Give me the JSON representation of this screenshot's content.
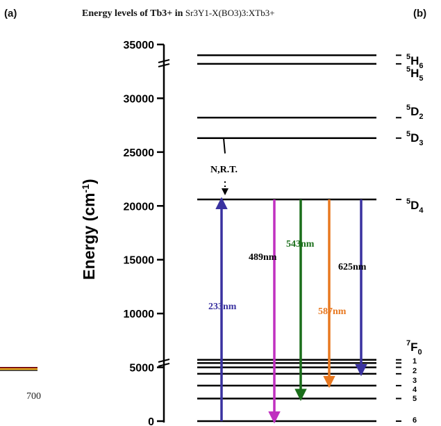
{
  "panel_a_label": "(a)",
  "panel_b_label": "(b)",
  "title_text": "Energy levels of Tb3+  in",
  "title_formula": "Sr3Y1-X(BO3)3:XTb3+",
  "left_panel_tick": "700",
  "y_axis": {
    "label": "Energy (cm-1)",
    "range": [
      0,
      35000
    ],
    "ticks": [
      "35000",
      "30000",
      "25000",
      "20000",
      "15000",
      "10000",
      "5000",
      "0"
    ]
  },
  "levels": [
    {
      "energy": 34000,
      "term": "5H6"
    },
    {
      "energy": 33200,
      "term": "5H5"
    },
    {
      "energy": 28200,
      "term": "5D2"
    },
    {
      "energy": 26300,
      "term": "5D3"
    },
    {
      "energy": 20600,
      "term": "5D4"
    },
    {
      "energy": 5700,
      "term": "7F0"
    },
    {
      "energy": 5400,
      "term": "1"
    },
    {
      "energy": 5000,
      "term": "2"
    },
    {
      "energy": 4400,
      "term": "3"
    },
    {
      "energy": 3300,
      "term": "4"
    },
    {
      "energy": 2100,
      "term": "5"
    },
    {
      "energy": 0,
      "term": "6"
    }
  ],
  "transitions": [
    {
      "label": "233nm",
      "from": 0,
      "to": 20600,
      "color": "#3a32a0"
    },
    {
      "label": "489nm",
      "from": 20600,
      "to": 0,
      "color": "#c030c0"
    },
    {
      "label": "543nm",
      "from": 20600,
      "to": 2100,
      "color": "#1a6e1a"
    },
    {
      "label": "587nm",
      "from": 20600,
      "to": 3300,
      "color": "#e87820"
    },
    {
      "label": "625nm",
      "from": 20600,
      "to": 4400,
      "color": "#3a32a0"
    },
    {
      "label": "N,R.T.",
      "from": 26300,
      "to": 20600,
      "color": "#000000"
    }
  ],
  "colors": {
    "levels": "#000000",
    "axis": "#000000",
    "left_panel_trace": "#f0b020"
  }
}
